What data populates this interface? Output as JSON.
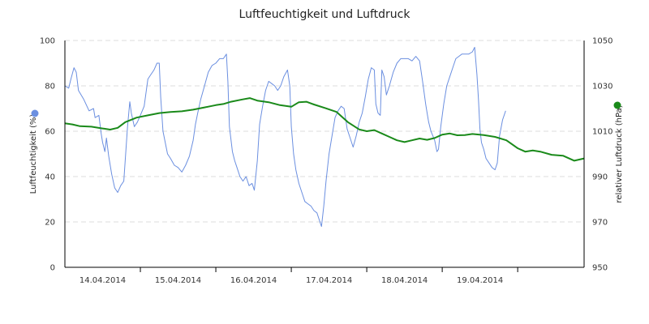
{
  "chart_data": {
    "type": "line",
    "title": "Luftfeuchtigkeit und Luftdruck",
    "y_left": {
      "label": "Luftfeuchtigkeit (%)",
      "range": [
        0,
        100
      ],
      "ticks": [
        0,
        20,
        40,
        60,
        80,
        100
      ],
      "tick_labels": [
        "0",
        "20",
        "40",
        "60",
        "80",
        "100"
      ]
    },
    "y_right": {
      "label": "relativer Luftdruck (hPa)",
      "range": [
        950,
        1050
      ],
      "ticks": [
        950,
        970,
        990,
        1010,
        1030,
        1050
      ],
      "tick_labels": [
        "950",
        "970",
        "990",
        "1010",
        "1030",
        "1050"
      ]
    },
    "x_axis": {
      "range": [
        0,
        6.88
      ],
      "tick_positions": [
        1,
        2,
        3,
        4,
        5,
        6
      ],
      "day_labels": [
        {
          "pos": 0.5,
          "text": "14.04.2014"
        },
        {
          "pos": 1.5,
          "text": "15.04.2014"
        },
        {
          "pos": 2.5,
          "text": "16.04.2014"
        },
        {
          "pos": 3.5,
          "text": "17.04.2014"
        },
        {
          "pos": 4.5,
          "text": "18.04.2014"
        },
        {
          "pos": 5.5,
          "text": "19.04.2014"
        }
      ]
    },
    "grid": "horizontal dashed",
    "series": [
      {
        "name": "Luftfeuchtigkeit (%)",
        "axis": "left",
        "color": "#6b8fe0",
        "points": [
          [
            0.0,
            80
          ],
          [
            0.05,
            79
          ],
          [
            0.08,
            83
          ],
          [
            0.12,
            88
          ],
          [
            0.15,
            86
          ],
          [
            0.18,
            78
          ],
          [
            0.25,
            74
          ],
          [
            0.32,
            69
          ],
          [
            0.38,
            70
          ],
          [
            0.4,
            66
          ],
          [
            0.45,
            67
          ],
          [
            0.48,
            59
          ],
          [
            0.5,
            55
          ],
          [
            0.53,
            51
          ],
          [
            0.55,
            57
          ],
          [
            0.58,
            49
          ],
          [
            0.62,
            41
          ],
          [
            0.66,
            35
          ],
          [
            0.7,
            33
          ],
          [
            0.74,
            36
          ],
          [
            0.78,
            38
          ],
          [
            0.83,
            62
          ],
          [
            0.86,
            73
          ],
          [
            0.88,
            68
          ],
          [
            0.92,
            62
          ],
          [
            0.96,
            64
          ],
          [
            1.0,
            67
          ],
          [
            1.05,
            71
          ],
          [
            1.1,
            83
          ],
          [
            1.14,
            85
          ],
          [
            1.18,
            87
          ],
          [
            1.22,
            90
          ],
          [
            1.25,
            90
          ],
          [
            1.27,
            75
          ],
          [
            1.3,
            60
          ],
          [
            1.33,
            55
          ],
          [
            1.36,
            50
          ],
          [
            1.4,
            48
          ],
          [
            1.45,
            45
          ],
          [
            1.5,
            44
          ],
          [
            1.55,
            42
          ],
          [
            1.6,
            45
          ],
          [
            1.65,
            49
          ],
          [
            1.7,
            56
          ],
          [
            1.73,
            63
          ],
          [
            1.76,
            68
          ],
          [
            1.8,
            74
          ],
          [
            1.85,
            80
          ],
          [
            1.9,
            86
          ],
          [
            1.95,
            89
          ],
          [
            2.0,
            90
          ],
          [
            2.05,
            92
          ],
          [
            2.1,
            92
          ],
          [
            2.14,
            94
          ],
          [
            2.16,
            82
          ],
          [
            2.18,
            62
          ],
          [
            2.22,
            51
          ],
          [
            2.25,
            47
          ],
          [
            2.28,
            44
          ],
          [
            2.32,
            40
          ],
          [
            2.36,
            38
          ],
          [
            2.4,
            40
          ],
          [
            2.44,
            36
          ],
          [
            2.48,
            37
          ],
          [
            2.51,
            34
          ],
          [
            2.55,
            47
          ],
          [
            2.58,
            63
          ],
          [
            2.62,
            71
          ],
          [
            2.66,
            78
          ],
          [
            2.7,
            82
          ],
          [
            2.74,
            81
          ],
          [
            2.78,
            80
          ],
          [
            2.82,
            78
          ],
          [
            2.86,
            80
          ],
          [
            2.9,
            84
          ],
          [
            2.95,
            87
          ],
          [
            2.98,
            80
          ],
          [
            3.0,
            62
          ],
          [
            3.03,
            50
          ],
          [
            3.06,
            43
          ],
          [
            3.1,
            37
          ],
          [
            3.14,
            33
          ],
          [
            3.18,
            29
          ],
          [
            3.22,
            28
          ],
          [
            3.26,
            27
          ],
          [
            3.3,
            25
          ],
          [
            3.34,
            24
          ],
          [
            3.38,
            20
          ],
          [
            3.4,
            18
          ],
          [
            3.43,
            27
          ],
          [
            3.46,
            38
          ],
          [
            3.5,
            50
          ],
          [
            3.54,
            58
          ],
          [
            3.58,
            66
          ],
          [
            3.62,
            69
          ],
          [
            3.66,
            71
          ],
          [
            3.7,
            70
          ],
          [
            3.74,
            61
          ],
          [
            3.78,
            57
          ],
          [
            3.82,
            53
          ],
          [
            3.86,
            58
          ],
          [
            3.9,
            64
          ],
          [
            3.94,
            68
          ],
          [
            3.98,
            75
          ],
          [
            4.02,
            83
          ],
          [
            4.06,
            88
          ],
          [
            4.1,
            87
          ],
          [
            4.12,
            72
          ],
          [
            4.15,
            68
          ],
          [
            4.18,
            67
          ],
          [
            4.2,
            87
          ],
          [
            4.23,
            84
          ],
          [
            4.26,
            76
          ],
          [
            4.3,
            80
          ],
          [
            4.35,
            86
          ],
          [
            4.4,
            90
          ],
          [
            4.45,
            92
          ],
          [
            4.5,
            92
          ],
          [
            4.55,
            92
          ],
          [
            4.6,
            91
          ],
          [
            4.65,
            93
          ],
          [
            4.7,
            91
          ],
          [
            4.74,
            82
          ],
          [
            4.78,
            72
          ],
          [
            4.8,
            68
          ],
          [
            4.82,
            64
          ],
          [
            4.85,
            60
          ],
          [
            4.9,
            56
          ],
          [
            4.93,
            51
          ],
          [
            4.95,
            52
          ],
          [
            4.98,
            62
          ],
          [
            5.02,
            72
          ],
          [
            5.06,
            80
          ],
          [
            5.1,
            84
          ],
          [
            5.14,
            88
          ],
          [
            5.18,
            92
          ],
          [
            5.22,
            93
          ],
          [
            5.26,
            94
          ],
          [
            5.3,
            94
          ],
          [
            5.35,
            94
          ],
          [
            5.4,
            95
          ],
          [
            5.43,
            97
          ],
          [
            5.46,
            85
          ],
          [
            5.48,
            74
          ],
          [
            5.5,
            61
          ],
          [
            5.52,
            55
          ],
          [
            5.55,
            52
          ],
          [
            5.58,
            48
          ],
          [
            5.62,
            46
          ],
          [
            5.66,
            44
          ],
          [
            5.7,
            43
          ],
          [
            5.73,
            46
          ],
          [
            5.76,
            58
          ],
          [
            5.8,
            65
          ],
          [
            5.84,
            69
          ]
        ]
      },
      {
        "name": "relativer Luftdruck (hPa)",
        "axis": "right",
        "color": "#1a8a1a",
        "points": [
          [
            0.0,
            1013.5
          ],
          [
            0.1,
            1013.0
          ],
          [
            0.2,
            1012.2
          ],
          [
            0.35,
            1012.0
          ],
          [
            0.5,
            1011.2
          ],
          [
            0.6,
            1010.7
          ],
          [
            0.7,
            1011.5
          ],
          [
            0.8,
            1014.0
          ],
          [
            0.95,
            1016.0
          ],
          [
            1.1,
            1017.0
          ],
          [
            1.25,
            1018.0
          ],
          [
            1.4,
            1018.5
          ],
          [
            1.55,
            1018.8
          ],
          [
            1.7,
            1019.5
          ],
          [
            1.85,
            1020.5
          ],
          [
            2.0,
            1021.5
          ],
          [
            2.1,
            1022.0
          ],
          [
            2.2,
            1023.0
          ],
          [
            2.35,
            1024.0
          ],
          [
            2.45,
            1024.6
          ],
          [
            2.55,
            1023.5
          ],
          [
            2.7,
            1022.8
          ],
          [
            2.85,
            1021.5
          ],
          [
            3.0,
            1020.8
          ],
          [
            3.1,
            1022.8
          ],
          [
            3.2,
            1023.0
          ],
          [
            3.3,
            1021.8
          ],
          [
            3.45,
            1020.2
          ],
          [
            3.6,
            1018.5
          ],
          [
            3.75,
            1014.0
          ],
          [
            3.9,
            1010.8
          ],
          [
            4.0,
            1010.0
          ],
          [
            4.1,
            1010.5
          ],
          [
            4.2,
            1009.0
          ],
          [
            4.3,
            1007.5
          ],
          [
            4.4,
            1006.0
          ],
          [
            4.5,
            1005.2
          ],
          [
            4.6,
            1006.0
          ],
          [
            4.7,
            1006.8
          ],
          [
            4.8,
            1006.2
          ],
          [
            4.9,
            1007.0
          ],
          [
            5.0,
            1008.5
          ],
          [
            5.1,
            1009.0
          ],
          [
            5.2,
            1008.2
          ],
          [
            5.3,
            1008.3
          ],
          [
            5.4,
            1008.8
          ],
          [
            5.55,
            1008.3
          ],
          [
            5.7,
            1007.5
          ],
          [
            5.85,
            1006.0
          ],
          [
            6.0,
            1002.5
          ],
          [
            6.1,
            1001.0
          ],
          [
            6.2,
            1001.5
          ],
          [
            6.3,
            1001.0
          ],
          [
            6.45,
            999.6
          ],
          [
            6.6,
            999.2
          ],
          [
            6.75,
            997.0
          ],
          [
            6.88,
            998.0
          ]
        ]
      }
    ]
  }
}
